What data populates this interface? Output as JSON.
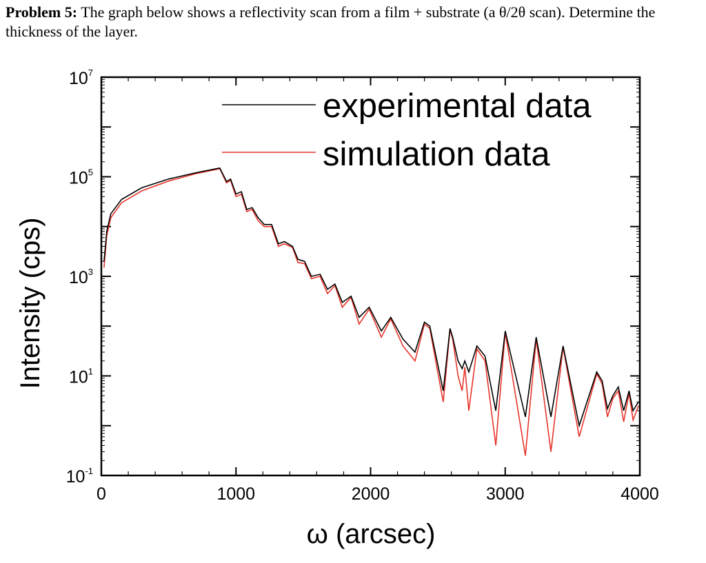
{
  "problem": {
    "label": "Problem 5:",
    "text": "The graph below shows a reflectivity scan from a film + substrate (a θ/2θ scan). Determine the thickness of the layer."
  },
  "colors": {
    "experimental": "#000000",
    "simulation": "#e8332a"
  },
  "chart_data": {
    "type": "line",
    "xlabel": "ω (arcsec)",
    "ylabel": "Intensity (cps)",
    "xlim": [
      0,
      4000
    ],
    "ylim": [
      0.1,
      10000000
    ],
    "yscale": "log",
    "xticks": [
      "0",
      "1000",
      "2000",
      "3000",
      "4000"
    ],
    "yticks": [
      {
        "base": "10",
        "exp": "-1"
      },
      {
        "base": "10",
        "exp": "1"
      },
      {
        "base": "10",
        "exp": "3"
      },
      {
        "base": "10",
        "exp": "5"
      },
      {
        "base": "10",
        "exp": "7"
      }
    ],
    "legend_position": "top-right",
    "series": [
      {
        "name": "experimental data",
        "points": [
          [
            20,
            2000
          ],
          [
            40,
            8000
          ],
          [
            70,
            18000
          ],
          [
            150,
            35000
          ],
          [
            300,
            60000
          ],
          [
            500,
            90000
          ],
          [
            700,
            120000
          ],
          [
            880,
            150000
          ],
          [
            930,
            80000
          ],
          [
            960,
            90000
          ],
          [
            1000,
            45000
          ],
          [
            1040,
            50000
          ],
          [
            1080,
            22000
          ],
          [
            1120,
            24000
          ],
          [
            1165,
            15000
          ],
          [
            1210,
            11000
          ],
          [
            1265,
            11000
          ],
          [
            1315,
            4500
          ],
          [
            1360,
            5000
          ],
          [
            1420,
            4000
          ],
          [
            1460,
            2200
          ],
          [
            1510,
            2000
          ],
          [
            1560,
            1000
          ],
          [
            1625,
            1100
          ],
          [
            1680,
            550
          ],
          [
            1735,
            700
          ],
          [
            1790,
            300
          ],
          [
            1855,
            400
          ],
          [
            1915,
            150
          ],
          [
            1990,
            240
          ],
          [
            2080,
            80
          ],
          [
            2150,
            150
          ],
          [
            2240,
            55
          ],
          [
            2330,
            30
          ],
          [
            2400,
            120
          ],
          [
            2440,
            100
          ],
          [
            2540,
            5
          ],
          [
            2590,
            90
          ],
          [
            2610,
            60
          ],
          [
            2650,
            20
          ],
          [
            2680,
            14
          ],
          [
            2700,
            20
          ],
          [
            2730,
            12
          ],
          [
            2790,
            40
          ],
          [
            2850,
            25
          ],
          [
            2930,
            2
          ],
          [
            3000,
            80
          ],
          [
            3150,
            1.5
          ],
          [
            3230,
            60
          ],
          [
            3340,
            1.5
          ],
          [
            3430,
            40
          ],
          [
            3550,
            1
          ],
          [
            3680,
            12
          ],
          [
            3720,
            8
          ],
          [
            3760,
            2.2
          ],
          [
            3800,
            4
          ],
          [
            3840,
            6
          ],
          [
            3880,
            2
          ],
          [
            3920,
            5
          ],
          [
            3950,
            2
          ],
          [
            3990,
            3
          ]
        ]
      },
      {
        "name": "simulation data",
        "points": [
          [
            20,
            1500
          ],
          [
            40,
            6500
          ],
          [
            70,
            15000
          ],
          [
            150,
            30000
          ],
          [
            300,
            52000
          ],
          [
            500,
            82000
          ],
          [
            700,
            115000
          ],
          [
            880,
            145000
          ],
          [
            930,
            75000
          ],
          [
            960,
            85000
          ],
          [
            1000,
            40000
          ],
          [
            1040,
            45000
          ],
          [
            1080,
            20000
          ],
          [
            1120,
            22000
          ],
          [
            1165,
            13000
          ],
          [
            1210,
            10000
          ],
          [
            1265,
            10000
          ],
          [
            1315,
            4000
          ],
          [
            1360,
            4500
          ],
          [
            1420,
            3800
          ],
          [
            1460,
            1900
          ],
          [
            1510,
            1800
          ],
          [
            1560,
            900
          ],
          [
            1625,
            1000
          ],
          [
            1680,
            450
          ],
          [
            1735,
            650
          ],
          [
            1790,
            240
          ],
          [
            1855,
            380
          ],
          [
            1915,
            110
          ],
          [
            1990,
            220
          ],
          [
            2080,
            60
          ],
          [
            2150,
            140
          ],
          [
            2240,
            40
          ],
          [
            2330,
            20
          ],
          [
            2400,
            110
          ],
          [
            2440,
            90
          ],
          [
            2540,
            3
          ],
          [
            2590,
            85
          ],
          [
            2610,
            55
          ],
          [
            2650,
            10
          ],
          [
            2680,
            5
          ],
          [
            2700,
            15
          ],
          [
            2730,
            2
          ],
          [
            2790,
            35
          ],
          [
            2850,
            20
          ],
          [
            2930,
            0.4
          ],
          [
            3000,
            75
          ],
          [
            3150,
            0.25
          ],
          [
            3230,
            55
          ],
          [
            3340,
            0.3
          ],
          [
            3430,
            38
          ],
          [
            3550,
            0.6
          ],
          [
            3680,
            11
          ],
          [
            3720,
            7
          ],
          [
            3760,
            1.5
          ],
          [
            3800,
            3.5
          ],
          [
            3840,
            5
          ],
          [
            3880,
            1.2
          ],
          [
            3920,
            4.5
          ],
          [
            3950,
            1.3
          ],
          [
            3990,
            2.5
          ]
        ]
      }
    ]
  }
}
